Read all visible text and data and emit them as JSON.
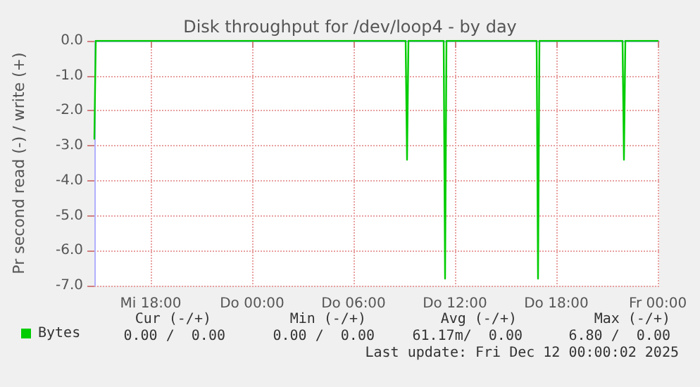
{
  "chart_data": {
    "type": "line",
    "title": "Disk throughput for /dev/loop4 - by day",
    "ylabel": "Pr second read (-) / write (+)",
    "series": [
      {
        "name": "Bytes",
        "color": "#00cc00",
        "x": [
          "2025-12-10T14:40",
          "2025-12-10T14:45",
          "2025-12-11T09:05",
          "2025-12-11T09:10",
          "2025-12-11T09:15",
          "2025-12-11T11:20",
          "2025-12-11T11:25",
          "2025-12-11T11:30",
          "2025-12-11T16:50",
          "2025-12-11T16:55",
          "2025-12-11T17:00",
          "2025-12-11T21:55",
          "2025-12-11T22:00",
          "2025-12-11T22:05",
          "2025-12-12T00:00"
        ],
        "values": [
          -2.8,
          0,
          0,
          -3.4,
          0,
          0,
          -6.8,
          0,
          0,
          -6.8,
          0,
          0,
          -3.4,
          0,
          0
        ]
      }
    ],
    "xlim": [
      "2025-12-10T14:40",
      "2025-12-12T00:05"
    ],
    "xticks": [
      {
        "value": "2025-12-10T18:00",
        "label": "Mi 18:00"
      },
      {
        "value": "2025-12-11T00:00",
        "label": "Do 00:00"
      },
      {
        "value": "2025-12-11T06:00",
        "label": "Do 06:00"
      },
      {
        "value": "2025-12-11T12:00",
        "label": "Do 12:00"
      },
      {
        "value": "2025-12-11T18:00",
        "label": "Do 18:00"
      },
      {
        "value": "2025-12-12T00:00",
        "label": "Fr 00:00"
      }
    ],
    "ylim": [
      -7,
      0
    ],
    "yticks": [
      {
        "value": -7,
        "label": "-7.0"
      },
      {
        "value": -6,
        "label": "-6.0"
      },
      {
        "value": -5,
        "label": "-5.0"
      },
      {
        "value": -4,
        "label": "-4.0"
      },
      {
        "value": -3,
        "label": "-3.0"
      },
      {
        "value": -2,
        "label": "-2.0"
      },
      {
        "value": -1,
        "label": "-1.0"
      },
      {
        "value": 0,
        "label": "0.0"
      }
    ],
    "grid": true,
    "legend": "bottom left",
    "marker": "none",
    "line_style": "solid",
    "annotations": [
      "Cur (-/+)",
      "Min (-/+)",
      "Avg (-/+)",
      "Max (-/+)",
      "0.00 /  0.00",
      "0.00 /  0.00",
      "61.17m/  0.00",
      "6.80 /  0.00",
      "Last update: Fri Dec 12 00:00:02 2025"
    ]
  }
}
